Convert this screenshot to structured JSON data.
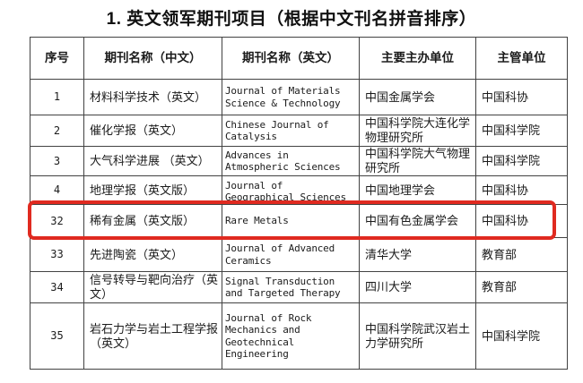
{
  "title": "1. 英文领军期刊项目（根据中文刊名拼音排序）",
  "table": {
    "headers": [
      "序号",
      "期刊名称（中文）",
      "期刊名称（英文）",
      "主要主办单位",
      "主管单位"
    ],
    "rows": [
      {
        "no": "1",
        "cn": "材料科学技术（英文）",
        "en": "Journal of Materials Science & Technology",
        "org": "中国金属学会",
        "sup": "中国科协"
      },
      {
        "no": "2",
        "cn": "催化学报（英文）",
        "en": "Chinese Journal of Catalysis",
        "org": "中国科学院大连化学物理研究所",
        "sup": "中国科学院"
      },
      {
        "no": "3",
        "cn": "大气科学进展 （英文）",
        "en": "Advances in Atmospheric Sciences",
        "org": "中国科学院大气物理研究所",
        "sup": "中国科学院"
      },
      {
        "no": "4",
        "cn": "地理学报（英文版）",
        "en": "Journal of Geographical Sciences",
        "org": "中国地理学会",
        "sup": "中国科协"
      },
      {
        "no": "32",
        "cn": "稀有金属（英文版）",
        "en": "Rare Metals",
        "org": "中国有色金属学会",
        "sup": "中国科协"
      },
      {
        "no": "33",
        "cn": "先进陶瓷（英文）",
        "en": "Journal of Advanced Ceramics",
        "org": "清华大学",
        "sup": "教育部"
      },
      {
        "no": "34",
        "cn": "信号转导与靶向治疗（英文）",
        "en": "Signal Transduction and Targeted Therapy",
        "org": "四川大学",
        "sup": "教育部"
      },
      {
        "no": "35",
        "cn": "岩石力学与岩土工程学报（英文）",
        "en": "Journal of Rock Mechanics and Geotechnical Engineering",
        "org": "中国科学院武汉岩土力学研究所",
        "sup": "中国科学院"
      }
    ]
  },
  "highlight": {
    "highlighted_row_no": "32",
    "color": "#e02a20"
  }
}
